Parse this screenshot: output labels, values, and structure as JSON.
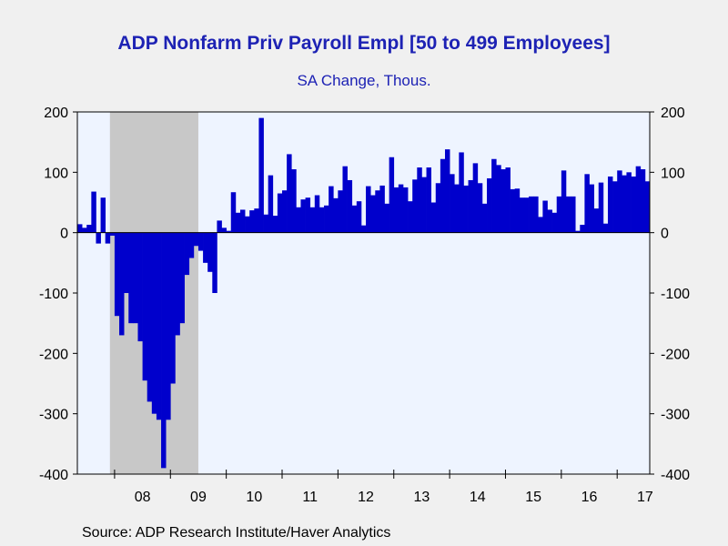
{
  "chart_data": {
    "type": "bar",
    "title": "ADP Nonfarm Priv Payroll Empl [50 to 499 Employees]",
    "subtitle": "SA Change, Thous.",
    "source": "Source:  ADP Research Institute/Haver Analytics",
    "ylim": [
      -400,
      200
    ],
    "y_ticks": [
      "200",
      "100",
      "0",
      "-100",
      "-200",
      "-300",
      "-400"
    ],
    "y_tick_values": [
      200,
      100,
      0,
      -100,
      -200,
      -300,
      -400
    ],
    "x_tick_labels": [
      "08",
      "09",
      "10",
      "11",
      "12",
      "13",
      "14",
      "15",
      "16",
      "17"
    ],
    "x_start": "2007-05",
    "recession": {
      "start": "2007-12",
      "end": "2009-06"
    },
    "colors": {
      "bar": "#0000cc",
      "plot_bg": "#eef4ff",
      "recession": "#c8c8c8",
      "title": "#1d22b4"
    },
    "values": [
      14,
      8,
      13,
      68,
      -18,
      58,
      -18,
      -5,
      -138,
      -170,
      -100,
      -150,
      -150,
      -180,
      -245,
      -280,
      -300,
      -310,
      -390,
      -310,
      -250,
      -170,
      -150,
      -70,
      -42,
      -22,
      -30,
      -50,
      -65,
      -100,
      20,
      8,
      3,
      67,
      33,
      38,
      27,
      37,
      40,
      190,
      30,
      95,
      28,
      65,
      70,
      130,
      105,
      42,
      55,
      58,
      42,
      62,
      42,
      45,
      77,
      57,
      70,
      110,
      87,
      45,
      52,
      12,
      77,
      62,
      70,
      78,
      48,
      125,
      75,
      80,
      75,
      52,
      88,
      108,
      92,
      108,
      50,
      82,
      122,
      138,
      97,
      80,
      133,
      78,
      87,
      115,
      82,
      48,
      90,
      122,
      112,
      105,
      108,
      72,
      73,
      58,
      58,
      60,
      60,
      26,
      53,
      38,
      33,
      60,
      103,
      60,
      60,
      3,
      13,
      97,
      80,
      40,
      83,
      15,
      93,
      85,
      103,
      95,
      100,
      93,
      110,
      105,
      85
    ]
  }
}
